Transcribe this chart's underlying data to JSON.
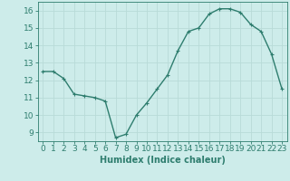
{
  "x": [
    0,
    1,
    2,
    3,
    4,
    5,
    6,
    7,
    8,
    9,
    10,
    11,
    12,
    13,
    14,
    15,
    16,
    17,
    18,
    19,
    20,
    21,
    22,
    23
  ],
  "y": [
    12.5,
    12.5,
    12.1,
    11.2,
    11.1,
    11.0,
    10.8,
    8.7,
    8.9,
    10.0,
    10.7,
    11.5,
    12.3,
    13.7,
    14.8,
    15.0,
    15.8,
    16.1,
    16.1,
    15.9,
    15.2,
    14.8,
    13.5,
    11.5
  ],
  "line_color": "#2e7d6e",
  "marker_color": "#2e7d6e",
  "bg_color": "#cdecea",
  "grid_color": "#b8dbd8",
  "axis_color": "#2e7d6e",
  "xlabel": "Humidex (Indice chaleur)",
  "xlim": [
    -0.5,
    23.5
  ],
  "ylim": [
    8.5,
    16.5
  ],
  "yticks": [
    9,
    10,
    11,
    12,
    13,
    14,
    15,
    16
  ],
  "xticks": [
    0,
    1,
    2,
    3,
    4,
    5,
    6,
    7,
    8,
    9,
    10,
    11,
    12,
    13,
    14,
    15,
    16,
    17,
    18,
    19,
    20,
    21,
    22,
    23
  ],
  "xtick_labels": [
    "0",
    "1",
    "2",
    "3",
    "4",
    "5",
    "6",
    "7",
    "8",
    "9",
    "10",
    "11",
    "12",
    "13",
    "14",
    "15",
    "16",
    "17",
    "18",
    "19",
    "20",
    "21",
    "22",
    "23"
  ],
  "ytick_labels": [
    "9",
    "10",
    "11",
    "12",
    "13",
    "14",
    "15",
    "16"
  ],
  "label_color": "#2e7d6e",
  "tick_color": "#2e7d6e",
  "xlabel_fontsize": 7,
  "tick_fontsize": 6.5,
  "line_width": 1.0,
  "marker_size": 2.5
}
